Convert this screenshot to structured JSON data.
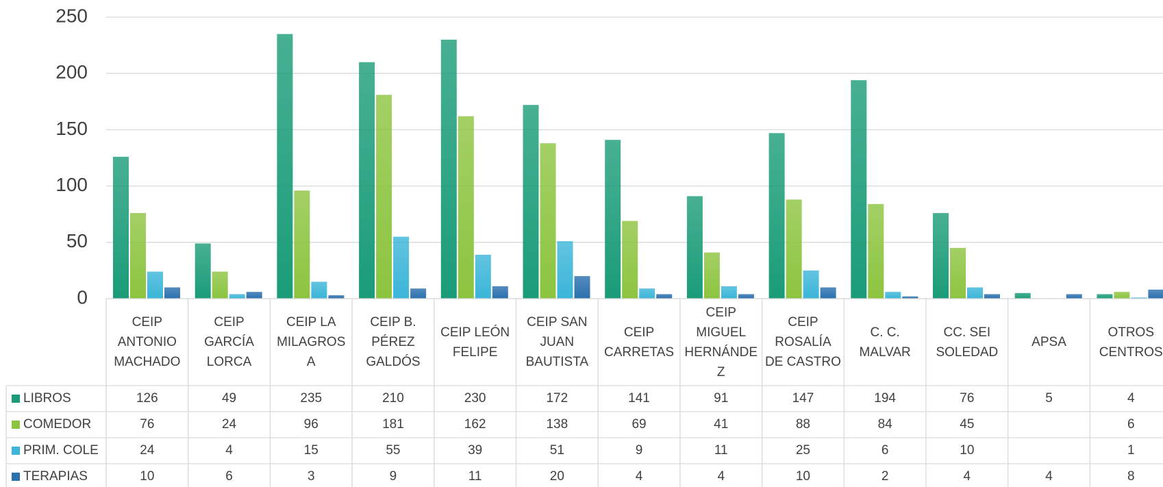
{
  "chart_data": {
    "type": "bar",
    "categories": [
      "CEIP ANTONIO MACHADO",
      "CEIP GARCÍA LORCA",
      "CEIP LA MILAGROSA",
      "CEIP B. PÉREZ GALDÓS",
      "CEIP LEÓN FELIPE",
      "CEIP SAN JUAN BAUTISTA",
      "CEIP CARRETAS",
      "CEIP MIGUEL HERNÁNDEZ",
      "CEIP ROSALÍA DE CASTRO",
      "C. C. MALVAR",
      "CC. SEI SOLEDAD",
      "APSA",
      "OTROS CENTROS"
    ],
    "series": [
      {
        "name": "LIBROS",
        "color": "#1a9c78",
        "values": [
          126,
          49,
          235,
          210,
          230,
          172,
          141,
          91,
          147,
          194,
          76,
          5,
          4
        ]
      },
      {
        "name": "COMEDOR",
        "color": "#8cc43f",
        "values": [
          76,
          24,
          96,
          181,
          162,
          138,
          69,
          41,
          88,
          84,
          45,
          null,
          6
        ]
      },
      {
        "name": "PRIM. COLE",
        "color": "#3bb5d8",
        "values": [
          24,
          4,
          15,
          55,
          39,
          51,
          9,
          11,
          25,
          6,
          10,
          null,
          1
        ]
      },
      {
        "name": "TERAPIAS",
        "color": "#2a6fae",
        "values": [
          10,
          6,
          3,
          9,
          11,
          20,
          4,
          4,
          10,
          2,
          4,
          4,
          8
        ]
      }
    ],
    "ylim": [
      0,
      250
    ],
    "yticks": [
      0,
      50,
      100,
      150,
      200,
      250
    ],
    "grid": true,
    "data_table": true
  }
}
